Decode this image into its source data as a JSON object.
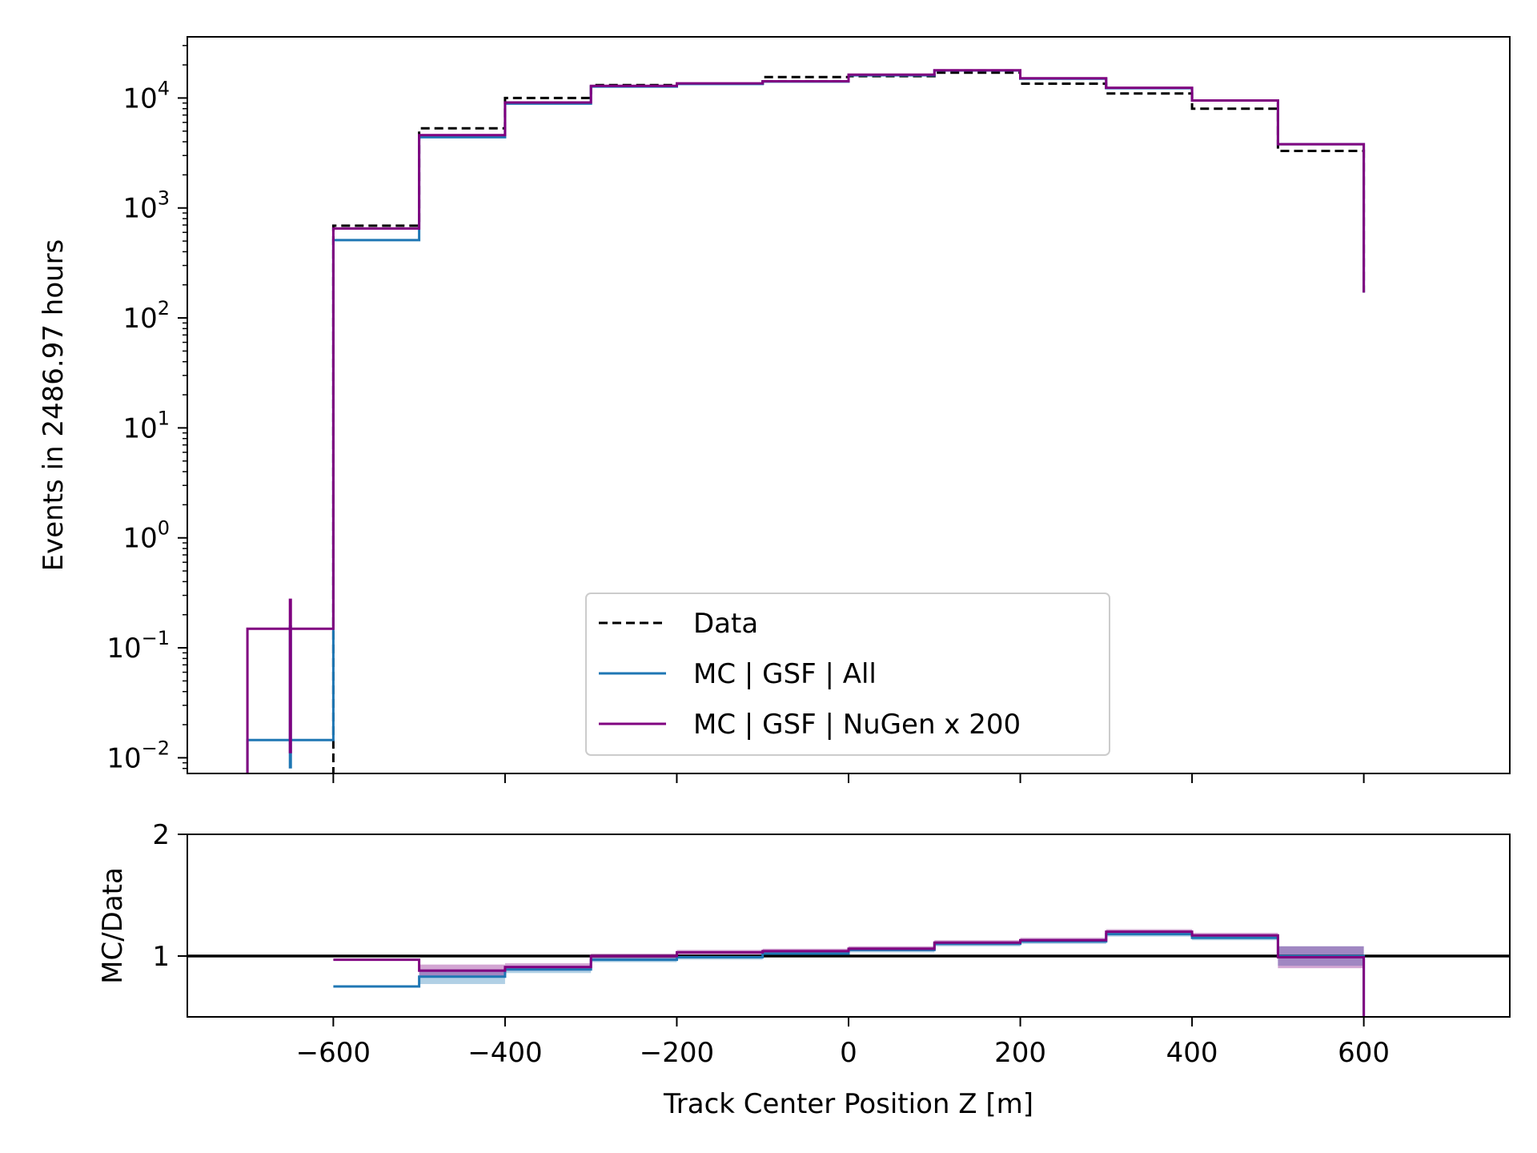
{
  "chart_data": [
    {
      "type": "line",
      "step": true,
      "xlabel": "",
      "ylabel": "Events in 2486.97 hours",
      "yscale": "log",
      "xlim": [
        -770,
        770
      ],
      "ylim": [
        0.0072,
        36000
      ],
      "x_ticks": [
        -600,
        -400,
        -200,
        0,
        200,
        400,
        600
      ],
      "y_ticks": [
        {
          "value": 0.01,
          "base": "10",
          "exp": "−2"
        },
        {
          "value": 0.1,
          "base": "10",
          "exp": "−1"
        },
        {
          "value": 1,
          "base": "10",
          "exp": "0"
        },
        {
          "value": 10,
          "base": "10",
          "exp": "1"
        },
        {
          "value": 100,
          "base": "10",
          "exp": "2"
        },
        {
          "value": 1000,
          "base": "10",
          "exp": "3"
        },
        {
          "value": 10000,
          "base": "10",
          "exp": "4"
        }
      ],
      "bin_edges": [
        -700,
        -600,
        -500,
        -400,
        -300,
        -200,
        -100,
        0,
        100,
        200,
        300,
        400,
        500,
        600
      ],
      "legend": {
        "position": "lower center"
      },
      "series": [
        {
          "name": "Data",
          "color": "#000000",
          "style": "dashed",
          "values": [
            null,
            690,
            5300,
            10000,
            13100,
            13500,
            15500,
            15800,
            17000,
            13500,
            11000,
            8000,
            3300,
            170
          ]
        },
        {
          "name": "MC | GSF | All",
          "color": "#1f77b4",
          "style": "solid",
          "values": [
            0.0145,
            510,
            4400,
            8900,
            12700,
            13400,
            14100,
            16100,
            17800,
            15000,
            12300,
            9500,
            3800,
            170
          ]
        },
        {
          "name": "MC | GSF | NuGen x 200",
          "color": "#800080",
          "style": "solid",
          "values": [
            0.149,
            650,
            4600,
            9100,
            12900,
            13600,
            14200,
            16300,
            17900,
            15100,
            12400,
            9500,
            3800,
            170
          ]
        }
      ],
      "error_bars": [
        {
          "series": "MC | GSF | All",
          "x": -650,
          "low": 0.008,
          "high": 0.16
        },
        {
          "series": "MC | GSF | NuGen x 200",
          "x": -650,
          "low": 0.011,
          "high": 0.28
        }
      ]
    },
    {
      "type": "line",
      "step": true,
      "xlabel": "Track Center Position Z [m]",
      "ylabel": "MC/Data",
      "xlim": [
        -770,
        770
      ],
      "ylim": [
        0.5,
        2
      ],
      "x_ticks": [
        -600,
        -400,
        -200,
        0,
        200,
        400,
        600
      ],
      "y_ticks": [
        1,
        2
      ],
      "reference_line": 1,
      "bin_edges": [
        -600,
        -500,
        -400,
        -300,
        -200,
        -100,
        0,
        100,
        200,
        300,
        400,
        500,
        600
      ],
      "series": [
        {
          "name": "MC | GSF | All",
          "color": "#1f77b4",
          "values": [
            0.75,
            0.83,
            0.89,
            0.97,
            0.99,
            1.02,
            1.05,
            1.1,
            1.12,
            1.18,
            1.15,
            1.0
          ],
          "band": [
            0.0,
            0.06,
            0.03,
            0.02,
            0.02,
            0.02,
            0.02,
            0.02,
            0.02,
            0.02,
            0.02,
            0.08
          ]
        },
        {
          "name": "MC | GSF | NuGen x 200",
          "color": "#800080",
          "values": [
            0.97,
            0.88,
            0.91,
            1.0,
            1.03,
            1.04,
            1.06,
            1.11,
            1.13,
            1.2,
            1.17,
            0.99
          ],
          "band": [
            0.0,
            0.05,
            0.03,
            0.02,
            0.02,
            0.02,
            0.02,
            0.02,
            0.02,
            0.02,
            0.02,
            0.09
          ]
        }
      ]
    }
  ]
}
